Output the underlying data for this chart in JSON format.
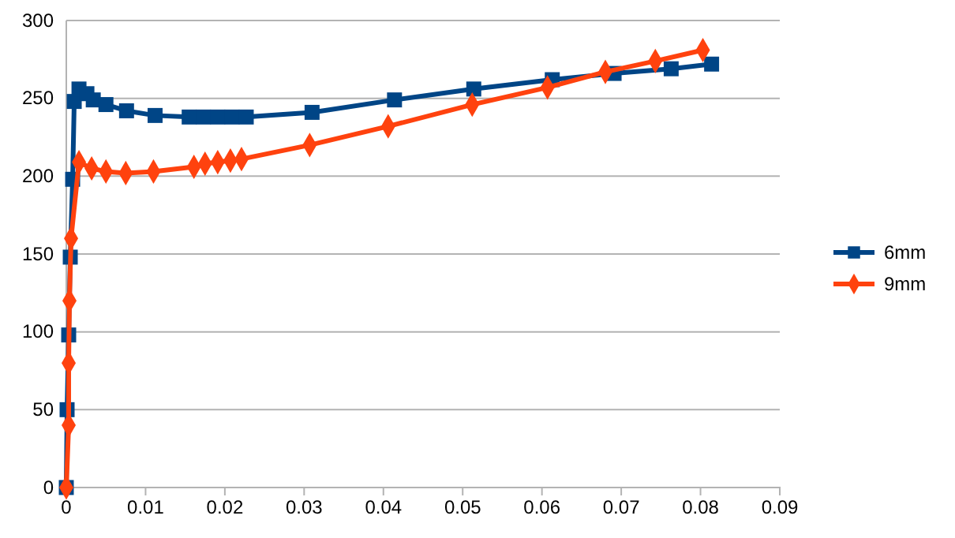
{
  "chart_data": {
    "type": "line",
    "xlim": [
      0,
      0.09
    ],
    "xticks": [
      0,
      0.01,
      0.02,
      0.03,
      0.04,
      0.05,
      0.06,
      0.07,
      0.08,
      0.09
    ],
    "ylim": [
      0,
      300
    ],
    "yticks": [
      0,
      50,
      100,
      150,
      200,
      250,
      300
    ],
    "grid": "y",
    "legend": "right",
    "series": [
      {
        "name": "6mm",
        "color": "#004586",
        "marker": "square",
        "x": [
          0,
          0.0001,
          0.0003,
          0.0005,
          0.0008,
          0.001,
          0.0016,
          0.0026,
          0.0034,
          0.005,
          0.0076,
          0.0112,
          0.0155,
          0.0173,
          0.0191,
          0.0209,
          0.0227,
          0.031,
          0.0414,
          0.0514,
          0.0613,
          0.0691,
          0.0763,
          0.0814
        ],
        "values": [
          0,
          50,
          98,
          148,
          198,
          248,
          256,
          253,
          249,
          246,
          242,
          239,
          238,
          238,
          238,
          238,
          238,
          241,
          249,
          256,
          262,
          266,
          269,
          272
        ]
      },
      {
        "name": "9mm",
        "color": "#ff420e",
        "marker": "diamond",
        "x": [
          0,
          0.0003,
          0.0003,
          0.0004,
          0.0006,
          0.0016,
          0.0032,
          0.005,
          0.0075,
          0.011,
          0.0161,
          0.0175,
          0.0191,
          0.0207,
          0.0221,
          0.0307,
          0.0406,
          0.0512,
          0.0607,
          0.068,
          0.0743,
          0.0803
        ],
        "values": [
          0,
          40,
          80,
          120,
          160,
          209,
          205,
          203,
          202,
          203,
          206,
          208,
          209,
          210,
          211,
          220,
          232,
          246,
          257,
          267,
          274,
          281
        ]
      }
    ]
  }
}
